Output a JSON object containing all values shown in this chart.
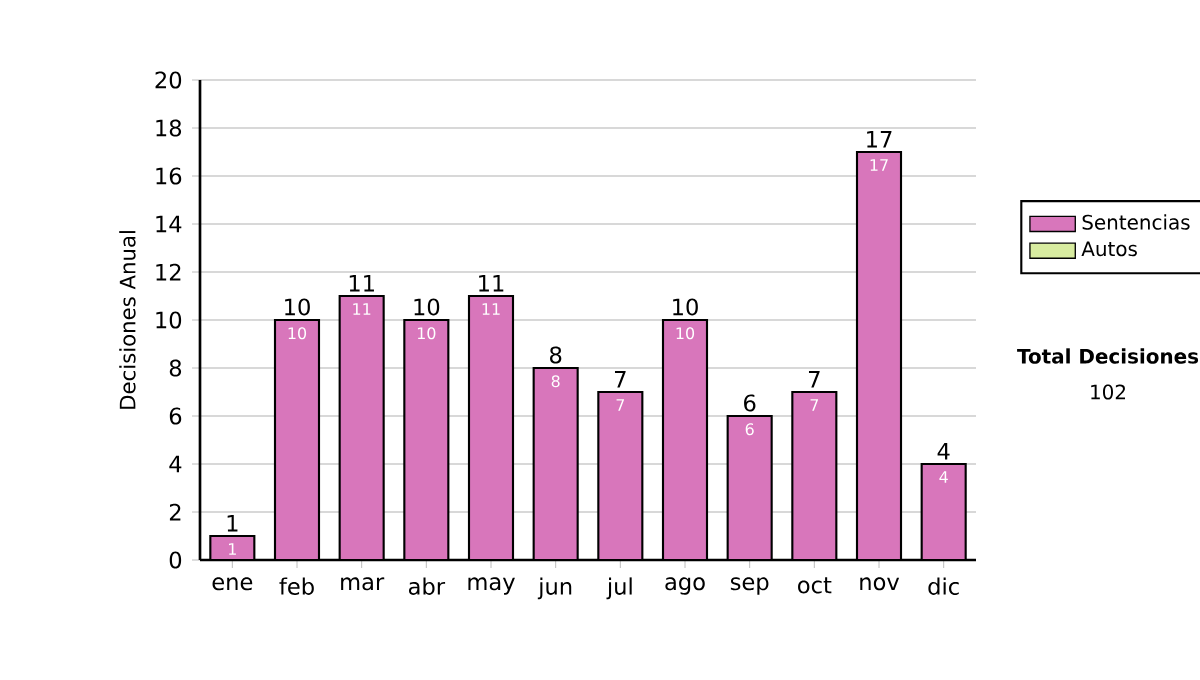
{
  "chart_data": {
    "type": "bar",
    "ylabel": "Decisiones Anual",
    "categories": [
      "ene",
      "feb",
      "mar",
      "abr",
      "may",
      "jun",
      "jul",
      "ago",
      "sep",
      "oct",
      "nov",
      "dic"
    ],
    "series": [
      {
        "name": "Sentencias",
        "color": "#d876bb",
        "values": [
          1,
          10,
          11,
          10,
          11,
          8,
          7,
          10,
          6,
          7,
          17,
          4
        ]
      },
      {
        "name": "Autos",
        "color": "#d8eca0",
        "values": [
          null,
          null,
          null,
          null,
          null,
          null,
          null,
          null,
          null,
          null,
          null,
          null
        ]
      }
    ],
    "totals": [
      "1",
      "10",
      "11",
      "10",
      "11",
      "8",
      "7",
      "10",
      "6",
      "7",
      "17",
      "4"
    ],
    "data_labels": true,
    "ylim": [
      0,
      20
    ],
    "yticks": [
      0,
      2,
      4,
      6,
      8,
      10,
      12,
      14,
      16,
      18,
      20
    ],
    "grid": "y",
    "legend": "right",
    "annotations": [
      "Total Decisiones",
      "102"
    ]
  }
}
